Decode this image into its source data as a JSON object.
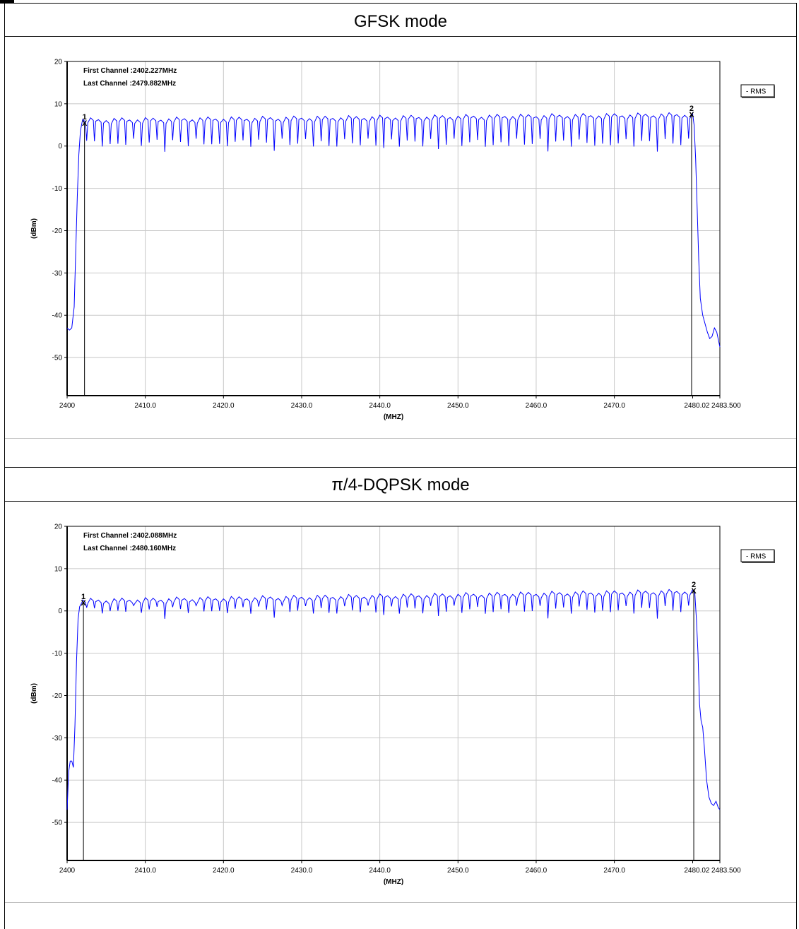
{
  "sections": [
    {
      "title": "GFSK mode"
    },
    {
      "title": "π/4-DQPSK mode"
    }
  ],
  "chart_data": [
    {
      "type": "line",
      "title": "GFSK mode",
      "xlabel": "(MHZ)",
      "ylabel": "(dBm)",
      "xlim": [
        2400,
        2483.5
      ],
      "ylim": [
        -59,
        20
      ],
      "x_ticks": [
        {
          "v": 2400,
          "label": "2400"
        },
        {
          "v": 2410,
          "label": "2410.0"
        },
        {
          "v": 2420,
          "label": "2420.0"
        },
        {
          "v": 2430,
          "label": "2430.0"
        },
        {
          "v": 2440,
          "label": "2440.0"
        },
        {
          "v": 2450,
          "label": "2450.0"
        },
        {
          "v": 2460,
          "label": "2460.0"
        },
        {
          "v": 2470,
          "label": "2470.0"
        },
        {
          "v": 2480.02,
          "label": "2480.02"
        },
        {
          "v": 2483.5,
          "label": "2483.500"
        }
      ],
      "y_ticks": [
        {
          "v": 20,
          "label": "20"
        },
        {
          "v": 10,
          "label": "10"
        },
        {
          "v": 0,
          "label": "0"
        },
        {
          "v": -10,
          "label": "-10"
        },
        {
          "v": -20,
          "label": "-20"
        },
        {
          "v": -30,
          "label": "-30"
        },
        {
          "v": -40,
          "label": "-40"
        },
        {
          "v": -50,
          "label": "-50"
        }
      ],
      "grid": true,
      "legend": "right, outside plot",
      "annotations": [
        "First Channel :2402.227MHz",
        "Last Channel :2479.882MHz"
      ],
      "markers": [
        {
          "label": "1",
          "x": 2402.227,
          "y": 5.5
        },
        {
          "label": "2",
          "x": 2479.882,
          "y": 7.5
        }
      ],
      "series": [
        {
          "name": "RMS",
          "color": "#0000ff",
          "hop_start": 2402,
          "hop_end": 2480,
          "hop_count": 79,
          "peak_start": 6.3,
          "peak_end": 7.6,
          "dip_level": 0.8,
          "x": [
            2400,
            2400.3,
            2400.6,
            2400.9,
            2401.1,
            2401.3,
            2401.5,
            2401.7,
            2401.9
          ],
          "y": [
            -43,
            -43.5,
            -43,
            -38,
            -25,
            -12,
            -2,
            3.5,
            5.5
          ],
          "x_tail": [
            2480.2,
            2480.4,
            2480.6,
            2480.8,
            2481.0,
            2481.3,
            2481.6,
            2481.9,
            2482.2,
            2482.5,
            2482.8,
            2483.1,
            2483.5
          ],
          "y_tail": [
            5,
            -3,
            -15,
            -27,
            -36,
            -40,
            -42,
            -44,
            -45.5,
            -45,
            -43,
            -44,
            -47.5
          ]
        }
      ]
    },
    {
      "type": "line",
      "title": "π/4-DQPSK mode",
      "xlabel": "(MHZ)",
      "ylabel": "(dBm)",
      "xlim": [
        2400,
        2483.5
      ],
      "ylim": [
        -59,
        20
      ],
      "x_ticks": [
        {
          "v": 2400,
          "label": "2400"
        },
        {
          "v": 2410,
          "label": "2410.0"
        },
        {
          "v": 2420,
          "label": "2420.0"
        },
        {
          "v": 2430,
          "label": "2430.0"
        },
        {
          "v": 2440,
          "label": "2440.0"
        },
        {
          "v": 2450,
          "label": "2450.0"
        },
        {
          "v": 2460,
          "label": "2460.0"
        },
        {
          "v": 2470,
          "label": "2470.0"
        },
        {
          "v": 2480.02,
          "label": "2480.02"
        },
        {
          "v": 2483.5,
          "label": "2483.500"
        }
      ],
      "y_ticks": [
        {
          "v": 20,
          "label": "20"
        },
        {
          "v": 10,
          "label": "10"
        },
        {
          "v": 0,
          "label": "0"
        },
        {
          "v": -10,
          "label": "-10"
        },
        {
          "v": -20,
          "label": "-20"
        },
        {
          "v": -30,
          "label": "-30"
        },
        {
          "v": -40,
          "label": "-40"
        },
        {
          "v": -50,
          "label": "-50"
        }
      ],
      "grid": true,
      "legend": "right, outside plot",
      "annotations": [
        "First Channel :2402.088MHz",
        "Last Channel :2480.160MHz"
      ],
      "markers": [
        {
          "label": "1",
          "x": 2402.088,
          "y": 2
        },
        {
          "label": "2",
          "x": 2480.16,
          "y": 4.8
        }
      ],
      "series": [
        {
          "name": "RMS",
          "color": "#0000ff",
          "hop_start": 2402,
          "hop_end": 2480,
          "hop_count": 79,
          "peak_start": 2.6,
          "peak_end": 4.8,
          "dip_level": 0.3,
          "x": [
            2400,
            2400.2,
            2400.4,
            2400.6,
            2400.8,
            2401.0,
            2401.2,
            2401.4,
            2401.6,
            2401.9
          ],
          "y": [
            -47,
            -38,
            -35.5,
            -35.5,
            -37,
            -27,
            -12,
            -2,
            1,
            2
          ],
          "x_tail": [
            2480.3,
            2480.5,
            2480.7,
            2480.9,
            2481.1,
            2481.3,
            2481.5,
            2481.8,
            2482.1,
            2482.4,
            2482.7,
            2483.0,
            2483.3,
            2483.5
          ],
          "y_tail": [
            4,
            -2,
            -10,
            -22,
            -26,
            -27.5,
            -32,
            -40,
            -44,
            -45.5,
            -46,
            -45,
            -46.5,
            -47
          ]
        }
      ]
    }
  ]
}
